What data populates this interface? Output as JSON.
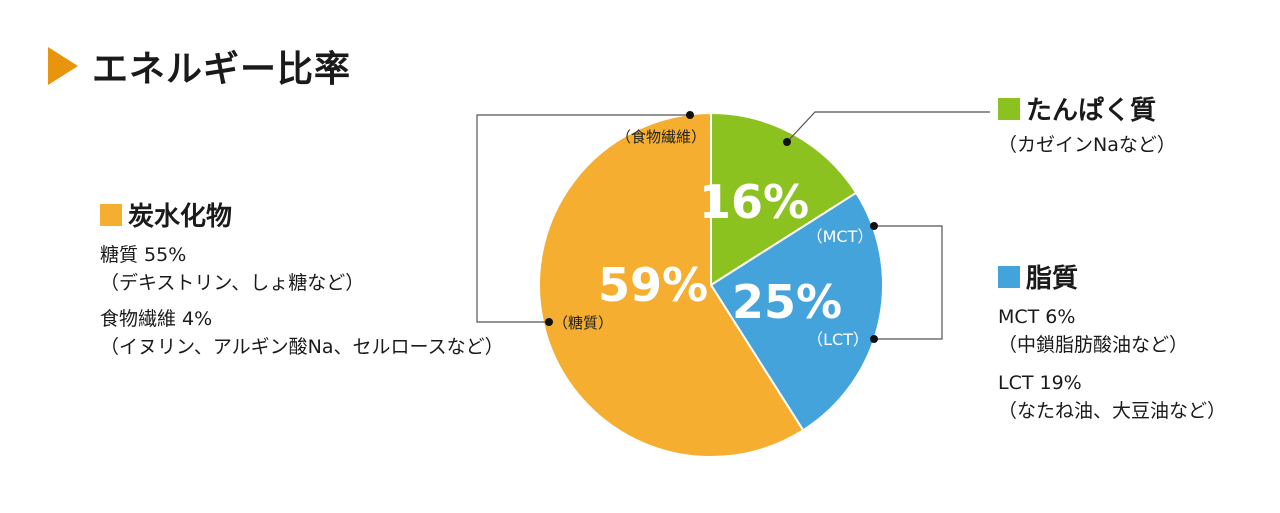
{
  "title": "エネルギー比率",
  "colors": {
    "accent": "#e8940c",
    "carb": "#f5ae2f",
    "protein": "#8cc21f",
    "fat": "#45a3dc",
    "text": "#1a1a1a"
  },
  "chart_data": {
    "type": "pie",
    "title": "エネルギー比率",
    "slices": [
      {
        "name": "たんぱく質",
        "value": 16,
        "label": "16%",
        "color": "#8cc21f"
      },
      {
        "name": "脂質",
        "value": 25,
        "label": "25%",
        "color": "#45a3dc"
      },
      {
        "name": "炭水化物",
        "value": 59,
        "label": "59%",
        "color": "#f5ae2f"
      }
    ],
    "inner_labels": {
      "carb_fiber": "（食物繊維）",
      "carb_sugar": "（糖質）",
      "fat_mct": "（MCT）",
      "fat_lct": "（LCT）"
    }
  },
  "legend": {
    "carb": {
      "name": "炭水化物",
      "items": [
        {
          "label": "糖質 55%",
          "detail": "（デキストリン、しょ糖など）"
        },
        {
          "label": "食物繊維 4%",
          "detail": "（イヌリン、アルギン酸Na、セルロースなど）"
        }
      ]
    },
    "protein": {
      "name": "たんぱく質",
      "detail": "（カゼインNaなど）"
    },
    "fat": {
      "name": "脂質",
      "items": [
        {
          "label": "MCT 6%",
          "detail": "（中鎖脂肪酸油など）"
        },
        {
          "label": "LCT 19%",
          "detail": "（なたね油、大豆油など）"
        }
      ]
    }
  }
}
